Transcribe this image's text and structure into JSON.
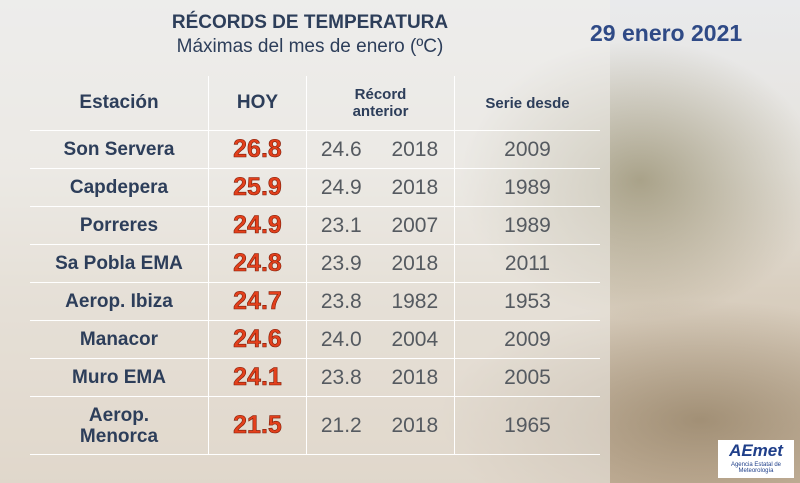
{
  "header": {
    "title": "RÉCORDS DE TEMPERATURA",
    "subtitle": "Máximas del mes de enero (ºC)",
    "date": "29 enero 2021"
  },
  "table": {
    "columns": [
      "Estación",
      "HOY",
      "Récord\nanterior",
      "Serie desde"
    ],
    "rows": [
      [
        "Son Servera",
        "26.8",
        "24.6",
        "2018",
        "2009"
      ],
      [
        "Capdepera",
        "25.9",
        "24.9",
        "2018",
        "1989"
      ],
      [
        "Porreres",
        "24.9",
        "23.1",
        "2007",
        "1989"
      ],
      [
        "Sa Pobla EMA",
        "24.8",
        "23.9",
        "2018",
        "2011"
      ],
      [
        "Aerop. Ibiza",
        "24.7",
        "23.8",
        "1982",
        "1953"
      ],
      [
        "Manacor",
        "24.6",
        "24.0",
        "2004",
        "2009"
      ],
      [
        "Muro EMA",
        "24.1",
        "23.8",
        "2018",
        "2005"
      ],
      [
        "Aerop.\nMenorca",
        "21.5",
        "21.2",
        "2018",
        "1965"
      ]
    ]
  },
  "logo": {
    "name": "AEmet",
    "caption": "Agencia Estatal de Meteorología"
  }
}
